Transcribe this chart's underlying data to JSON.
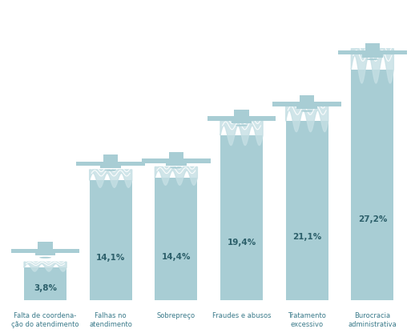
{
  "categories": [
    "Falta de coordena-\nção do atendimento",
    "Falhas no\natendimento",
    "Sobrepreço",
    "Fraudes e abusos",
    "Tratamento\nexcessivo",
    "Burocracia\nadministrativa"
  ],
  "values": [
    3.8,
    14.1,
    14.4,
    19.4,
    21.1,
    27.2
  ],
  "labels": [
    "3,8%",
    "14,1%",
    "14,4%",
    "19,4%",
    "21,1%",
    "27,2%"
  ],
  "bar_color": "#a8cdd4",
  "wave_color": "#c5dfe4",
  "bar_edge_color": "#a8cdd4",
  "background_color": "#ffffff",
  "text_color": "#4a7c87",
  "label_color": "#2c5f6a",
  "bar_width": 0.65,
  "max_val": 30,
  "figsize": [
    5.18,
    4.16
  ],
  "dpi": 100
}
